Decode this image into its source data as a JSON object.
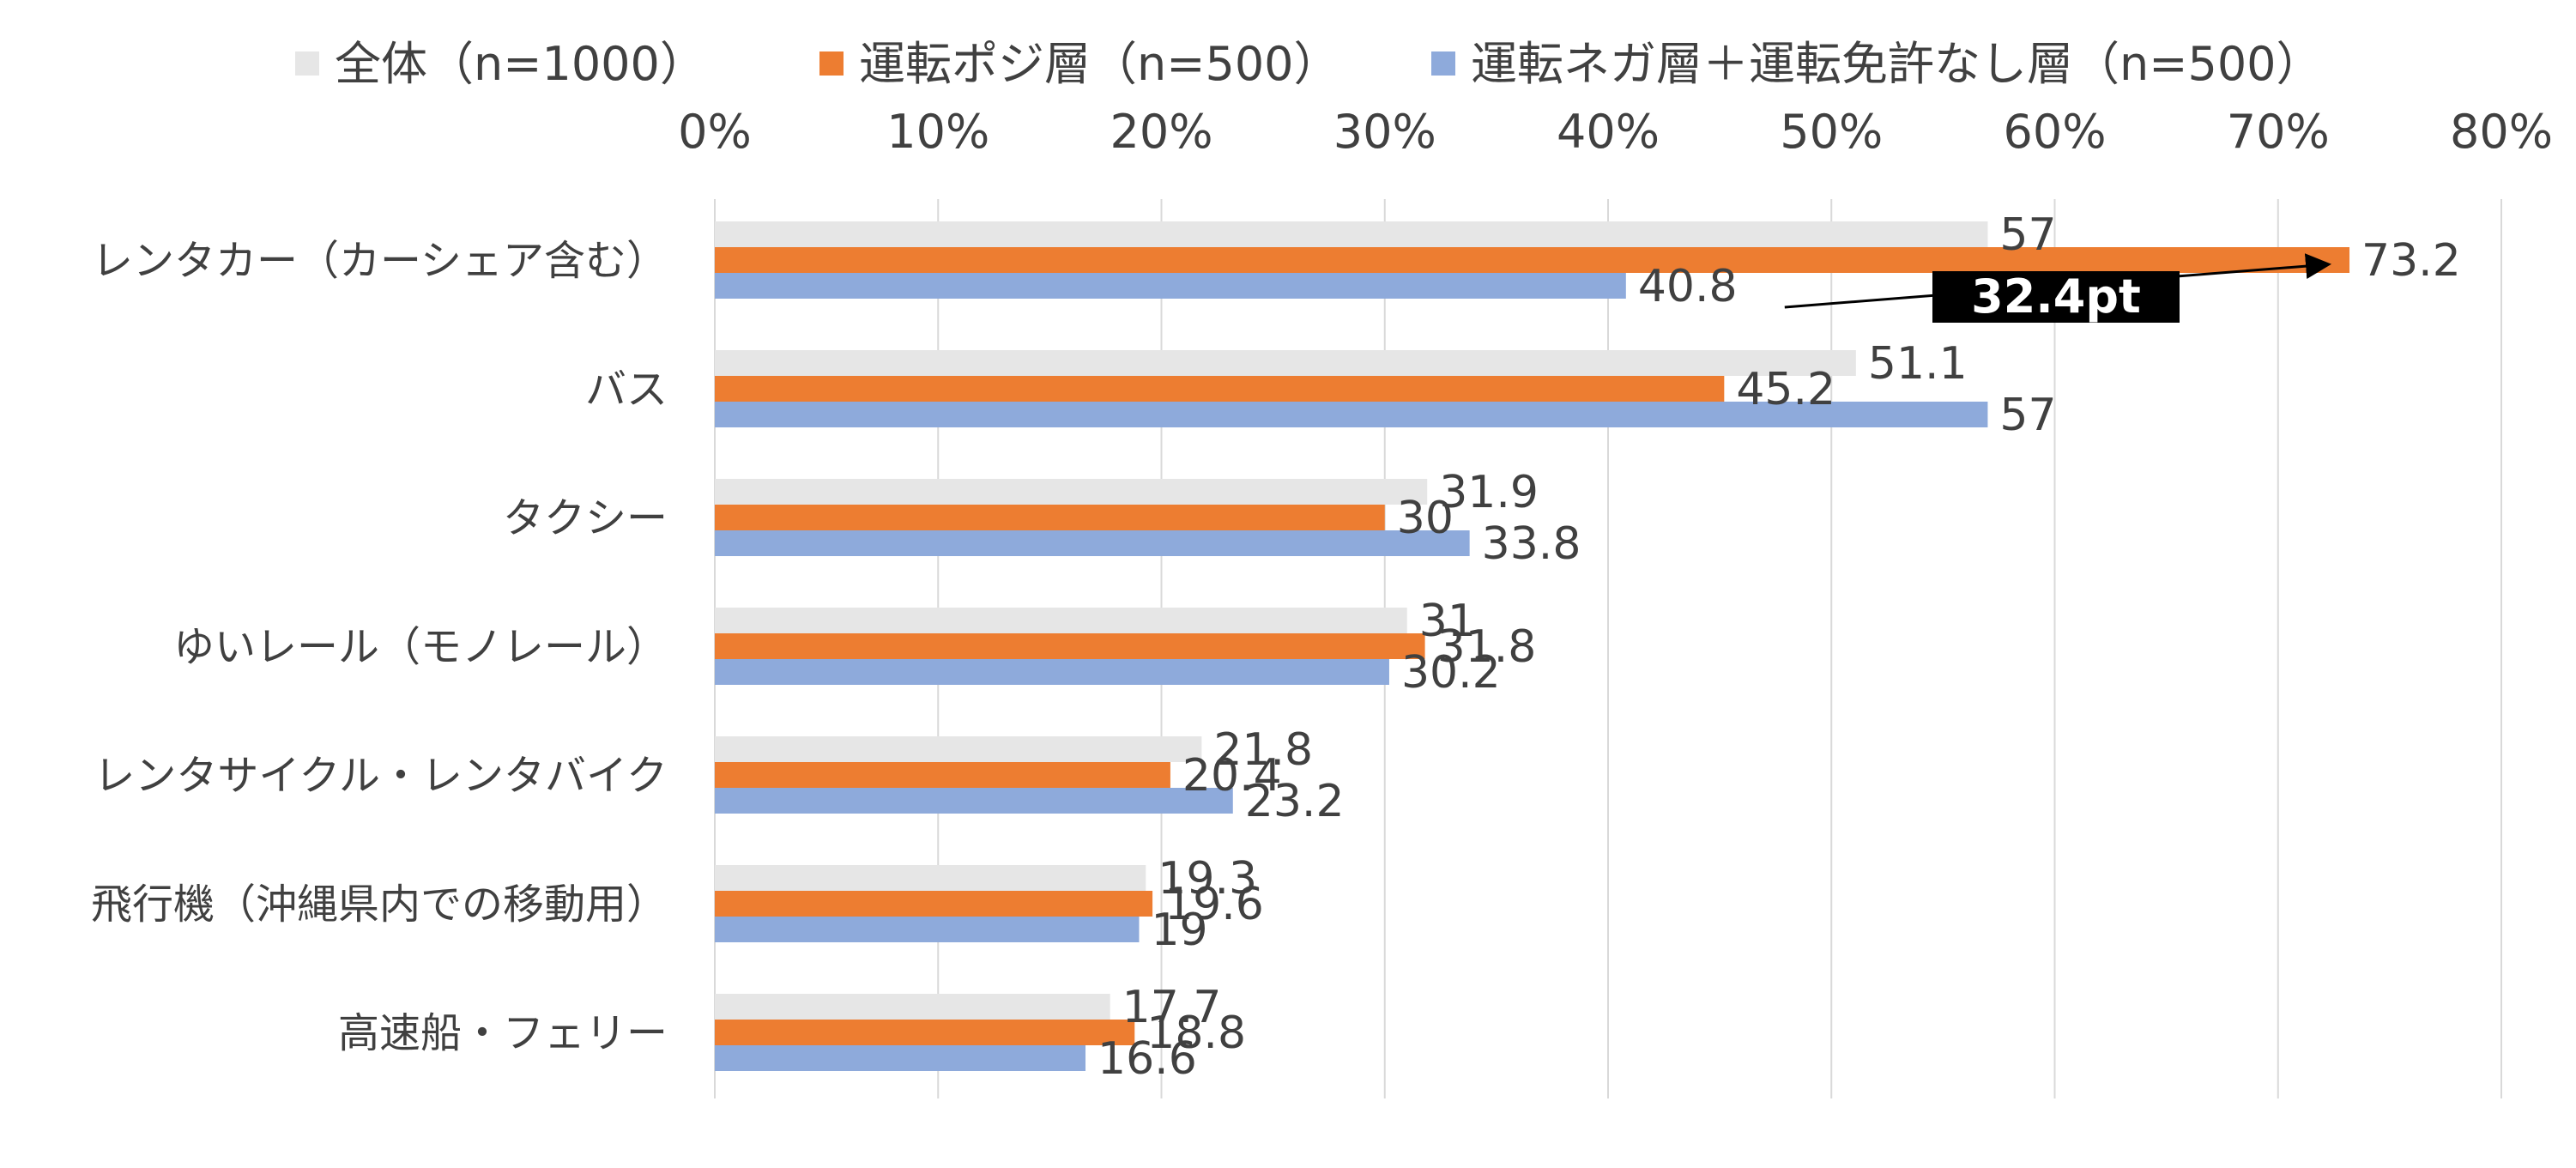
{
  "chart_data": {
    "type": "bar",
    "orientation": "horizontal",
    "categories": [
      "レンタカー（カーシェア含む）",
      "バス",
      "タクシー",
      "ゆいレール（モノレール）",
      "レンタサイクル・レンタバイク",
      "飛行機（沖縄県内での移動用）",
      "高速船・フェリー"
    ],
    "series": [
      {
        "name": "全体（n=1000）",
        "color": "#e6e6e6",
        "values": [
          57,
          51.1,
          31.9,
          31,
          21.8,
          19.3,
          17.7
        ]
      },
      {
        "name": "運転ポジ層（n=500）",
        "color": "#ed7d31",
        "values": [
          73.2,
          45.2,
          30,
          31.8,
          20.4,
          19.6,
          18.8
        ]
      },
      {
        "name": "運転ネガ層＋運転免許なし層（n=500）",
        "color": "#8eaadb",
        "values": [
          40.8,
          57,
          33.8,
          30.2,
          23.2,
          19,
          16.6
        ]
      }
    ],
    "xlim": [
      0,
      80
    ],
    "x_ticks": [
      "0%",
      "10%",
      "20%",
      "30%",
      "40%",
      "50%",
      "60%",
      "70%",
      "80%"
    ],
    "x_tick_values": [
      0,
      10,
      20,
      30,
      40,
      50,
      60,
      70,
      80
    ],
    "grid": true,
    "legend_position": "top",
    "annotation": {
      "text": "32.4pt",
      "from_series": 2,
      "to_series": 1,
      "category_index": 0
    }
  }
}
